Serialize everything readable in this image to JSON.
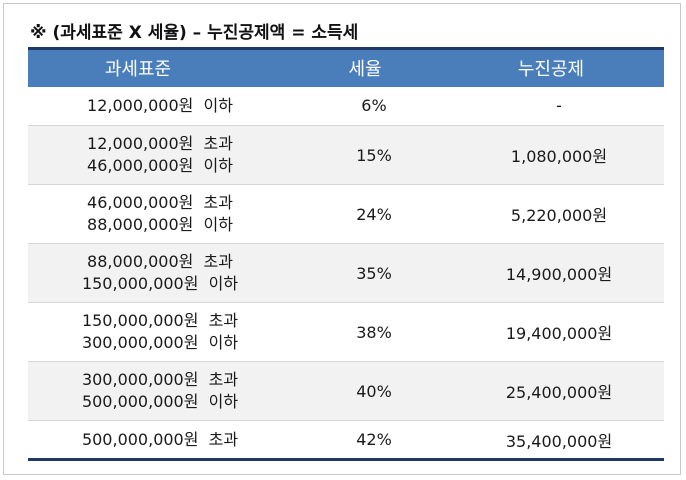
{
  "title": "※ (과세표준 X 세율) – 누진공제액 = 소득세",
  "table": {
    "headers": [
      "과세표준",
      "세율",
      "누진공제"
    ],
    "rows": [
      {
        "range": [
          "12,000,000원  이하"
        ],
        "rate": "6%",
        "deduction": "-"
      },
      {
        "range": [
          "12,000,000원  초과",
          "46,000,000원  이하"
        ],
        "rate": "15%",
        "deduction": "1,080,000원"
      },
      {
        "range": [
          "46,000,000원  초과",
          "88,000,000원  이하"
        ],
        "rate": "24%",
        "deduction": "5,220,000원"
      },
      {
        "range": [
          "88,000,000원  초과",
          "150,000,000원  이하"
        ],
        "rate": "35%",
        "deduction": "14,900,000원"
      },
      {
        "range": [
          "150,000,000원  초과",
          "300,000,000원  이하"
        ],
        "rate": "38%",
        "deduction": "19,400,000원"
      },
      {
        "range": [
          "300,000,000원  초과",
          "500,000,000원  이하"
        ],
        "rate": "40%",
        "deduction": "25,400,000원"
      },
      {
        "range": [
          "500,000,000원  초과"
        ],
        "rate": "42%",
        "deduction": "35,400,000원"
      }
    ]
  },
  "colors": {
    "header_bg": "#4a7ebb",
    "header_text": "#ffffff",
    "rule": "#1f3864",
    "stripe": "#f2f2f2"
  }
}
